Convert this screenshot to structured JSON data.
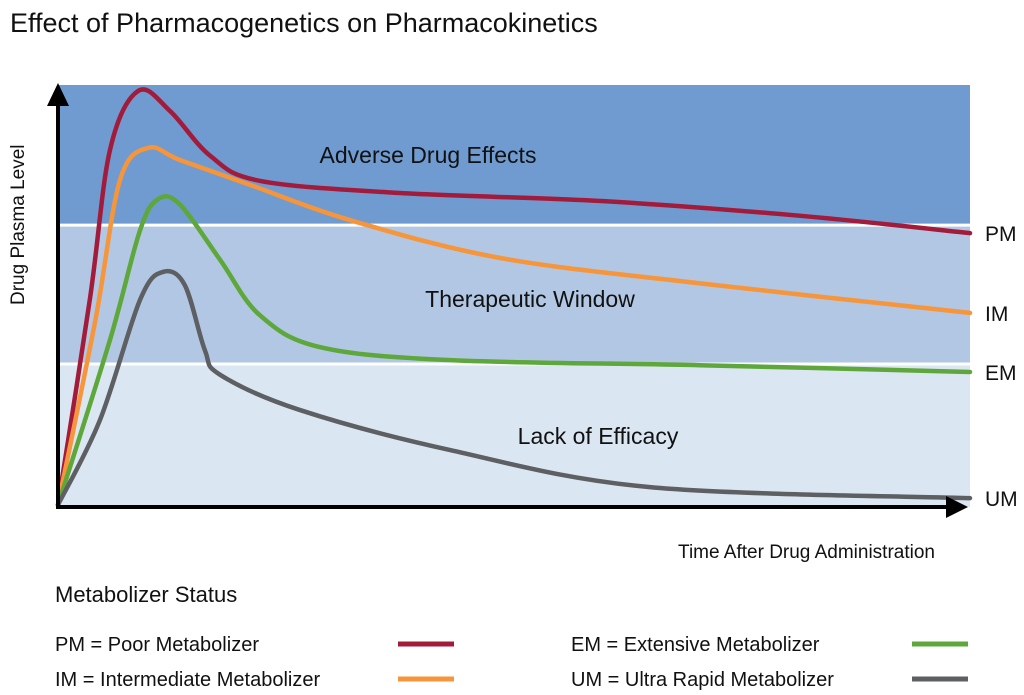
{
  "chart_data": {
    "type": "line",
    "title": "Effect of Pharmacogenetics on Pharmacokinetics",
    "xlabel": "Time After Drug Administration",
    "ylabel": "Drug Plasma Level",
    "xlim": [
      0,
      100
    ],
    "ylim": [
      0,
      100
    ],
    "bands": [
      {
        "label": "Adverse Drug Effects",
        "from": 66.8,
        "to": 100,
        "color": "#6f9bd0"
      },
      {
        "label": "Therapeutic Window",
        "from": 33.9,
        "to": 66.8,
        "color": "#b1c7e3"
      },
      {
        "label": "Lack of Efficacy",
        "from": 0,
        "to": 33.9,
        "color": "#dbe6f3"
      }
    ],
    "series": [
      {
        "name": "PM",
        "color": "#a31b3b",
        "x": [
          0,
          3.5,
          5.7,
          8.8,
          12.3,
          16.7,
          22.1,
          37.5,
          59.6,
          81.4,
          100
        ],
        "y": [
          0.5,
          49.3,
          84.6,
          98.6,
          93.8,
          83.2,
          77.3,
          74.4,
          72.5,
          69,
          64.9
        ]
      },
      {
        "name": "IM",
        "color": "#f7953b",
        "x": [
          0,
          4.1,
          6.8,
          9.9,
          13.4,
          21.1,
          32.0,
          48.5,
          70.4,
          100
        ],
        "y": [
          0.5,
          44.3,
          77.5,
          85.1,
          82.2,
          76.3,
          68,
          59,
          53,
          46
        ]
      },
      {
        "name": "EM",
        "color": "#5ea73a",
        "x": [
          0,
          5.7,
          9,
          11,
          13.4,
          17.8,
          22.1,
          28.7,
          43,
          70.4,
          100
        ],
        "y": [
          0.5,
          39.6,
          65.6,
          73,
          71.6,
          58.5,
          45.5,
          37.9,
          34.8,
          33.6,
          32
        ]
      },
      {
        "name": "UM",
        "color": "#5d5f62",
        "x": [
          0,
          4.6,
          9,
          11.5,
          13.9,
          16.1,
          17.8,
          26.5,
          43,
          64.9,
          100
        ],
        "y": [
          0.5,
          20.6,
          49.1,
          55.7,
          52.6,
          37.2,
          31.3,
          23,
          13.5,
          4.7,
          2.1
        ]
      }
    ],
    "legend": {
      "title": "Metabolizer Status",
      "placement": "bottom",
      "entries": [
        {
          "abbr": "PM",
          "text": "PM = Poor Metabolizer",
          "color": "#a31b3b"
        },
        {
          "abbr": "IM",
          "text": "IM = Intermediate Metabolizer",
          "color": "#f7953b"
        },
        {
          "abbr": "EM",
          "text": "EM  = Extensive Metabolizer",
          "color": "#5ea73a"
        },
        {
          "abbr": "UM",
          "text": "UM  = Ultra Rapid Metabolizer",
          "color": "#5d5f62"
        }
      ]
    }
  }
}
